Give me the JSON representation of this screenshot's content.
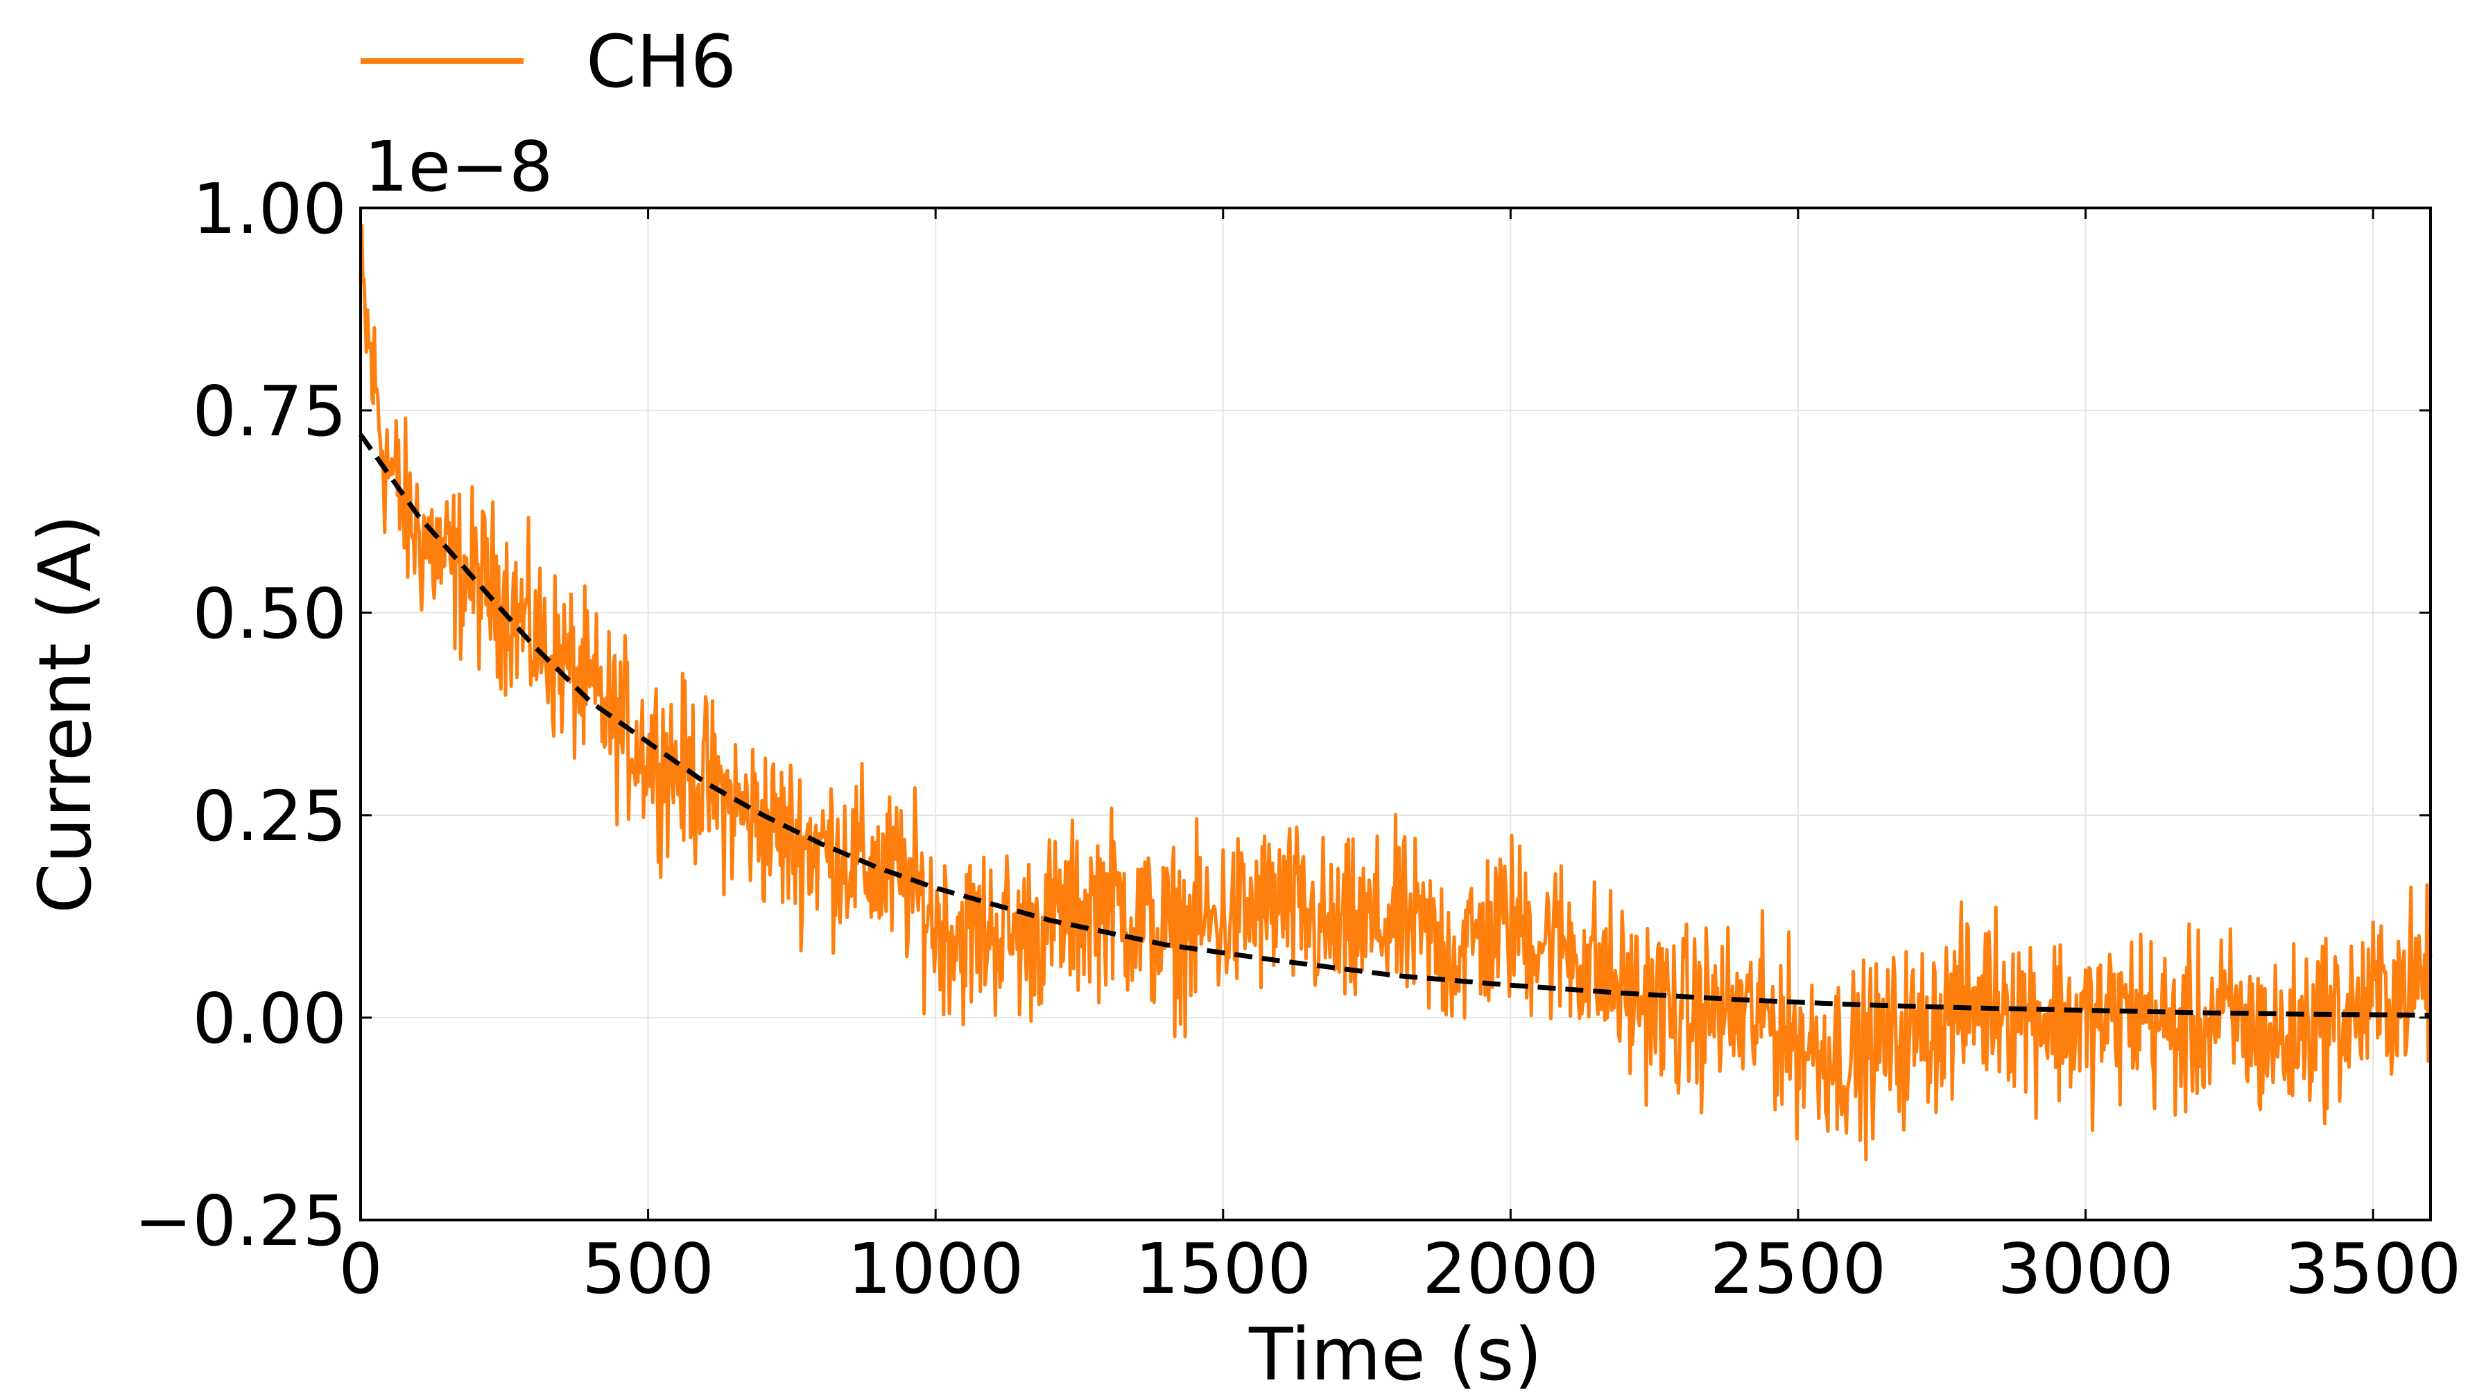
{
  "chart_data": {
    "type": "line",
    "xlabel": "Time (s)",
    "ylabel": "Current (A)",
    "offset_text": "1e−8",
    "xlim": [
      0,
      3600
    ],
    "ylim": [
      -0.25,
      1.0
    ],
    "y_scale_factor": 1e-08,
    "xticks": [
      0,
      500,
      1000,
      1500,
      2000,
      2500,
      3000,
      3500
    ],
    "xtick_labels": [
      "0",
      "500",
      "1000",
      "1500",
      "2000",
      "2500",
      "3000",
      "3500"
    ],
    "yticks": [
      -0.25,
      0.0,
      0.25,
      0.5,
      0.75,
      1.0
    ],
    "ytick_labels": [
      "−0.25",
      "0.00",
      "0.25",
      "0.50",
      "0.75",
      "1.00"
    ],
    "grid": true,
    "legend": {
      "placement": "top-left, outside plot",
      "entries": [
        "CH6"
      ]
    },
    "series": [
      {
        "name": "CH6",
        "color": "#ff7f0e",
        "style": "solid",
        "x": [
          0,
          20,
          40,
          60,
          80,
          100,
          150,
          200,
          250,
          300,
          350,
          400,
          450,
          500,
          550,
          600,
          650,
          700,
          750,
          800,
          850,
          900,
          950,
          1000,
          1050,
          1100,
          1150,
          1200,
          1250,
          1300,
          1350,
          1400,
          1450,
          1500,
          1550,
          1600,
          1650,
          1700,
          1750,
          1800,
          1850,
          1900,
          1950,
          2000,
          2050,
          2100,
          2150,
          2200,
          2250,
          2300,
          2350,
          2400,
          2450,
          2500,
          2550,
          2600,
          2650,
          2700,
          2750,
          2800,
          2850,
          2900,
          2950,
          3000,
          3050,
          3100,
          3150,
          3200,
          3250,
          3300,
          3350,
          3400,
          3450,
          3500,
          3550,
          3600
        ],
        "values": [
          0.9,
          0.8,
          0.7,
          0.66,
          0.62,
          0.6,
          0.56,
          0.54,
          0.52,
          0.47,
          0.44,
          0.4,
          0.36,
          0.33,
          0.31,
          0.29,
          0.26,
          0.24,
          0.22,
          0.21,
          0.2,
          0.18,
          0.17,
          0.12,
          0.1,
          0.11,
          0.1,
          0.12,
          0.13,
          0.15,
          0.12,
          0.1,
          0.11,
          0.12,
          0.13,
          0.14,
          0.12,
          0.1,
          0.11,
          0.12,
          0.1,
          0.08,
          0.1,
          0.12,
          0.1,
          0.09,
          0.06,
          0.03,
          0.02,
          0.0,
          0.01,
          0.0,
          0.0,
          -0.03,
          -0.04,
          -0.05,
          -0.03,
          -0.02,
          0.0,
          0.02,
          0.03,
          0.01,
          0.0,
          -0.01,
          0.0,
          0.01,
          -0.02,
          -0.01,
          0.0,
          -0.02,
          -0.03,
          0.0,
          0.0,
          0.02,
          0.04,
          0.05
        ],
        "noise_amplitude": 0.08
      },
      {
        "color": "#000000",
        "style": "dashed",
        "function": "exponential decay fit",
        "x": [
          0,
          100,
          200,
          300,
          400,
          500,
          600,
          700,
          800,
          900,
          1000,
          1200,
          1400,
          1600,
          1800,
          2000,
          2200,
          2400,
          2600,
          2800,
          3000,
          3200,
          3400,
          3600
        ],
        "values": [
          0.72,
          0.62,
          0.54,
          0.46,
          0.39,
          0.34,
          0.29,
          0.25,
          0.215,
          0.185,
          0.16,
          0.12,
          0.09,
          0.07,
          0.052,
          0.04,
          0.03,
          0.022,
          0.016,
          0.012,
          0.009,
          0.006,
          0.004,
          0.003
        ]
      }
    ]
  }
}
